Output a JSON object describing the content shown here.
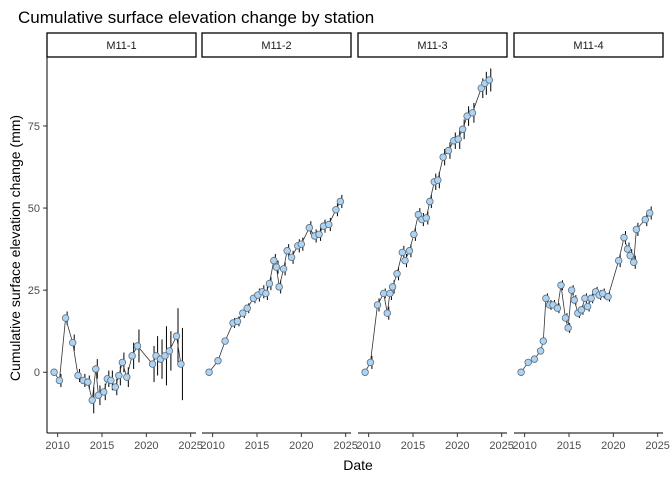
{
  "chart_data": {
    "type": "scatter",
    "title": "Cumulative surface elevation change by station",
    "xlabel": "Date",
    "ylabel": "Cumulative surface elevation change (mm)",
    "xlim": [
      2008.8,
      2025.6
    ],
    "ylim": [
      -18.5,
      96
    ],
    "xticks": [
      2010,
      2015,
      2020,
      2025
    ],
    "yticks": [
      0,
      25,
      50,
      75
    ],
    "grid": false,
    "legend": "none",
    "point_fill": "#aed2f0",
    "point_stroke": "#5a6f82",
    "line_color": "#333333",
    "panels": [
      {
        "name": "M11-1",
        "points": [
          {
            "x": 2009.6,
            "y": 0.0,
            "err": 0.0
          },
          {
            "x": 2010.2,
            "y": -2.5,
            "err": 2.0
          },
          {
            "x": 2010.9,
            "y": 16.5,
            "err": 2.0
          },
          {
            "x": 2011.7,
            "y": 9.0,
            "err": 2.5
          },
          {
            "x": 2012.3,
            "y": -1.0,
            "err": 2.0
          },
          {
            "x": 2012.9,
            "y": -2.5,
            "err": 2.0
          },
          {
            "x": 2013.4,
            "y": -3.0,
            "err": 2.0
          },
          {
            "x": 2013.9,
            "y": -8.5,
            "err": 4.0
          },
          {
            "x": 2014.3,
            "y": 1.0,
            "err": 3.0
          },
          {
            "x": 2014.6,
            "y": -7.0,
            "err": 3.0
          },
          {
            "x": 2015.2,
            "y": -6.0,
            "err": 2.5
          },
          {
            "x": 2015.6,
            "y": -2.0,
            "err": 2.5
          },
          {
            "x": 2016.0,
            "y": -2.5,
            "err": 3.0
          },
          {
            "x": 2016.5,
            "y": -4.5,
            "err": 2.5
          },
          {
            "x": 2016.9,
            "y": -1.0,
            "err": 3.0
          },
          {
            "x": 2017.3,
            "y": 3.0,
            "err": 3.0
          },
          {
            "x": 2017.8,
            "y": -1.5,
            "err": 3.0
          },
          {
            "x": 2018.4,
            "y": 5.0,
            "err": 4.0
          },
          {
            "x": 2019.0,
            "y": 8.0,
            "err": 5.0
          },
          {
            "x": 2020.7,
            "y": 2.5,
            "err": 5.5
          },
          {
            "x": 2021.1,
            "y": 5.0,
            "err": 6.0
          },
          {
            "x": 2021.6,
            "y": 4.0,
            "err": 6.0
          },
          {
            "x": 2022.1,
            "y": 5.0,
            "err": 9.0
          },
          {
            "x": 2022.6,
            "y": 6.5,
            "err": 6.0
          },
          {
            "x": 2023.4,
            "y": 11.0,
            "err": 8.5
          },
          {
            "x": 2023.9,
            "y": 2.5,
            "err": 11.0
          }
        ]
      },
      {
        "name": "M11-2",
        "points": [
          {
            "x": 2009.6,
            "y": 0.0,
            "err": 0.0
          },
          {
            "x": 2010.6,
            "y": 3.5,
            "err": 1.0
          },
          {
            "x": 2011.4,
            "y": 9.5,
            "err": 1.0
          },
          {
            "x": 2012.3,
            "y": 15.0,
            "err": 1.5
          },
          {
            "x": 2012.8,
            "y": 15.5,
            "err": 1.5
          },
          {
            "x": 2013.4,
            "y": 18.0,
            "err": 1.5
          },
          {
            "x": 2013.9,
            "y": 19.5,
            "err": 1.5
          },
          {
            "x": 2014.6,
            "y": 22.5,
            "err": 1.5
          },
          {
            "x": 2015.1,
            "y": 23.5,
            "err": 2.0
          },
          {
            "x": 2015.6,
            "y": 24.5,
            "err": 2.0
          },
          {
            "x": 2016.0,
            "y": 24.0,
            "err": 2.0
          },
          {
            "x": 2016.4,
            "y": 27.0,
            "err": 2.0
          },
          {
            "x": 2016.9,
            "y": 34.0,
            "err": 2.0
          },
          {
            "x": 2017.2,
            "y": 32.0,
            "err": 2.0
          },
          {
            "x": 2017.5,
            "y": 26.0,
            "err": 2.0
          },
          {
            "x": 2018.0,
            "y": 31.5,
            "err": 2.0
          },
          {
            "x": 2018.4,
            "y": 37.0,
            "err": 2.0
          },
          {
            "x": 2018.9,
            "y": 35.0,
            "err": 2.0
          },
          {
            "x": 2019.6,
            "y": 38.5,
            "err": 2.0
          },
          {
            "x": 2020.0,
            "y": 39.0,
            "err": 2.0
          },
          {
            "x": 2020.9,
            "y": 44.0,
            "err": 2.0
          },
          {
            "x": 2021.5,
            "y": 41.5,
            "err": 2.0
          },
          {
            "x": 2022.0,
            "y": 42.0,
            "err": 2.0
          },
          {
            "x": 2022.5,
            "y": 44.5,
            "err": 2.0
          },
          {
            "x": 2023.1,
            "y": 45.0,
            "err": 2.0
          },
          {
            "x": 2023.9,
            "y": 49.5,
            "err": 2.0
          },
          {
            "x": 2024.4,
            "y": 52.0,
            "err": 2.0
          }
        ]
      },
      {
        "name": "M11-3",
        "points": [
          {
            "x": 2009.6,
            "y": 0.0,
            "err": 0.0
          },
          {
            "x": 2010.2,
            "y": 3.0,
            "err": 2.0
          },
          {
            "x": 2011.0,
            "y": 20.5,
            "err": 2.0
          },
          {
            "x": 2011.7,
            "y": 24.0,
            "err": 1.5
          },
          {
            "x": 2012.1,
            "y": 18.0,
            "err": 2.0
          },
          {
            "x": 2012.4,
            "y": 24.0,
            "err": 2.0
          },
          {
            "x": 2012.7,
            "y": 26.0,
            "err": 2.0
          },
          {
            "x": 2013.2,
            "y": 30.0,
            "err": 2.0
          },
          {
            "x": 2013.8,
            "y": 36.5,
            "err": 2.0
          },
          {
            "x": 2014.1,
            "y": 34.0,
            "err": 2.0
          },
          {
            "x": 2014.6,
            "y": 37.0,
            "err": 2.0
          },
          {
            "x": 2015.1,
            "y": 42.0,
            "err": 2.0
          },
          {
            "x": 2015.6,
            "y": 48.0,
            "err": 2.0
          },
          {
            "x": 2016.0,
            "y": 46.5,
            "err": 2.0
          },
          {
            "x": 2016.5,
            "y": 47.0,
            "err": 2.0
          },
          {
            "x": 2016.9,
            "y": 52.0,
            "err": 2.0
          },
          {
            "x": 2017.4,
            "y": 58.0,
            "err": 2.5
          },
          {
            "x": 2017.8,
            "y": 58.5,
            "err": 2.5
          },
          {
            "x": 2018.4,
            "y": 65.5,
            "err": 2.5
          },
          {
            "x": 2019.0,
            "y": 67.5,
            "err": 2.5
          },
          {
            "x": 2019.6,
            "y": 70.5,
            "err": 2.5
          },
          {
            "x": 2020.1,
            "y": 71.0,
            "err": 3.0
          },
          {
            "x": 2020.6,
            "y": 74.0,
            "err": 3.0
          },
          {
            "x": 2021.1,
            "y": 78.0,
            "err": 3.0
          },
          {
            "x": 2021.7,
            "y": 79.0,
            "err": 3.0
          },
          {
            "x": 2022.7,
            "y": 86.5,
            "err": 3.0
          },
          {
            "x": 2023.1,
            "y": 88.0,
            "err": 3.5
          },
          {
            "x": 2023.6,
            "y": 89.0,
            "err": 3.5
          }
        ]
      },
      {
        "name": "M11-4",
        "points": [
          {
            "x": 2009.6,
            "y": 0.0,
            "err": 0.0
          },
          {
            "x": 2010.4,
            "y": 3.0,
            "err": 0.5
          },
          {
            "x": 2011.1,
            "y": 4.0,
            "err": 0.5
          },
          {
            "x": 2011.8,
            "y": 6.5,
            "err": 1.0
          },
          {
            "x": 2012.1,
            "y": 9.5,
            "err": 1.0
          },
          {
            "x": 2012.4,
            "y": 22.5,
            "err": 1.5
          },
          {
            "x": 2012.8,
            "y": 20.5,
            "err": 1.5
          },
          {
            "x": 2013.2,
            "y": 20.5,
            "err": 1.5
          },
          {
            "x": 2013.7,
            "y": 19.5,
            "err": 1.5
          },
          {
            "x": 2014.1,
            "y": 26.5,
            "err": 1.5
          },
          {
            "x": 2014.6,
            "y": 16.5,
            "err": 1.5
          },
          {
            "x": 2014.9,
            "y": 13.5,
            "err": 1.5
          },
          {
            "x": 2015.3,
            "y": 25.0,
            "err": 1.5
          },
          {
            "x": 2015.6,
            "y": 22.0,
            "err": 1.5
          },
          {
            "x": 2016.0,
            "y": 18.0,
            "err": 1.5
          },
          {
            "x": 2016.4,
            "y": 19.0,
            "err": 1.5
          },
          {
            "x": 2016.8,
            "y": 22.5,
            "err": 1.5
          },
          {
            "x": 2017.1,
            "y": 20.0,
            "err": 1.5
          },
          {
            "x": 2017.5,
            "y": 22.5,
            "err": 1.5
          },
          {
            "x": 2018.0,
            "y": 24.5,
            "err": 1.5
          },
          {
            "x": 2018.4,
            "y": 23.5,
            "err": 1.5
          },
          {
            "x": 2018.8,
            "y": 24.0,
            "err": 1.5
          },
          {
            "x": 2019.4,
            "y": 23.0,
            "err": 1.5
          },
          {
            "x": 2020.6,
            "y": 34.0,
            "err": 2.0
          },
          {
            "x": 2021.2,
            "y": 41.0,
            "err": 2.0
          },
          {
            "x": 2021.6,
            "y": 37.5,
            "err": 2.0
          },
          {
            "x": 2021.9,
            "y": 35.5,
            "err": 2.0
          },
          {
            "x": 2022.3,
            "y": 33.5,
            "err": 2.0
          },
          {
            "x": 2022.6,
            "y": 43.5,
            "err": 2.0
          },
          {
            "x": 2023.6,
            "y": 46.5,
            "err": 2.0
          },
          {
            "x": 2024.1,
            "y": 48.5,
            "err": 2.0
          }
        ]
      }
    ]
  }
}
